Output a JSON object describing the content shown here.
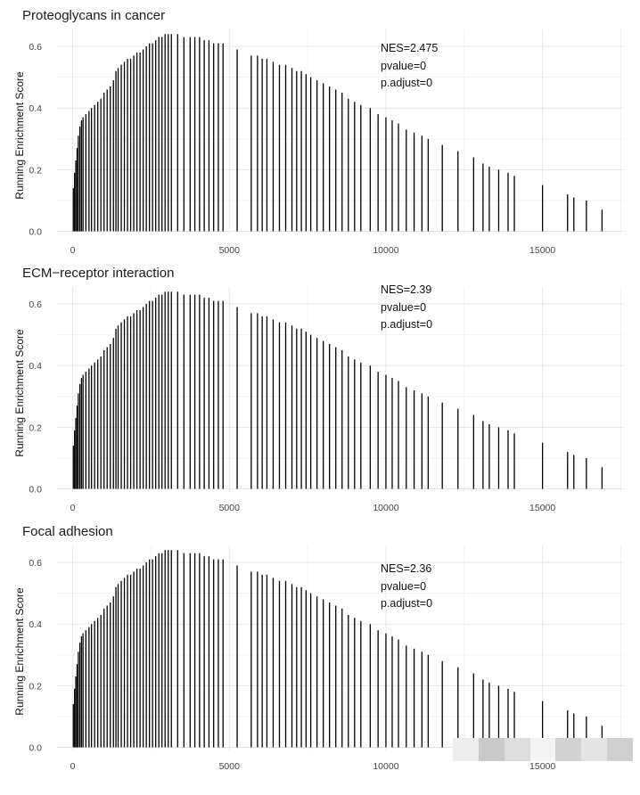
{
  "colors": {
    "bars": "#000000",
    "grid": "#e6e6e6",
    "background": "#ffffff",
    "text": "#1a1a1a"
  },
  "chart_data": [
    {
      "type": "barcode",
      "title": "Proteoglycans in cancer",
      "xlabel": "",
      "ylabel": "Running Enrichment Score",
      "xlim": [
        -500,
        17600
      ],
      "ylim": [
        -0.01,
        0.655
      ],
      "xticks": [
        0,
        5000,
        10000,
        15000
      ],
      "yticks": [
        0.0,
        0.2,
        0.4,
        0.6
      ],
      "grid": true,
      "annotations": [
        "NES=2.475",
        "pvalue=0",
        "p.adjust=0"
      ],
      "hits": [
        [
          20,
          0.14
        ],
        [
          60,
          0.19
        ],
        [
          100,
          0.23
        ],
        [
          140,
          0.27
        ],
        [
          180,
          0.31
        ],
        [
          230,
          0.34
        ],
        [
          280,
          0.36
        ],
        [
          330,
          0.37
        ],
        [
          420,
          0.38
        ],
        [
          520,
          0.39
        ],
        [
          600,
          0.4
        ],
        [
          700,
          0.41
        ],
        [
          800,
          0.42
        ],
        [
          900,
          0.43
        ],
        [
          1000,
          0.45
        ],
        [
          1100,
          0.46
        ],
        [
          1200,
          0.47
        ],
        [
          1300,
          0.49
        ],
        [
          1380,
          0.52
        ],
        [
          1450,
          0.53
        ],
        [
          1550,
          0.54
        ],
        [
          1650,
          0.55
        ],
        [
          1750,
          0.56
        ],
        [
          1850,
          0.56
        ],
        [
          1950,
          0.57
        ],
        [
          2050,
          0.58
        ],
        [
          2150,
          0.58
        ],
        [
          2250,
          0.59
        ],
        [
          2350,
          0.6
        ],
        [
          2450,
          0.61
        ],
        [
          2550,
          0.61
        ],
        [
          2650,
          0.62
        ],
        [
          2750,
          0.63
        ],
        [
          2850,
          0.63
        ],
        [
          2950,
          0.64
        ],
        [
          3050,
          0.64
        ],
        [
          3150,
          0.64
        ],
        [
          3350,
          0.64
        ],
        [
          3550,
          0.63
        ],
        [
          3750,
          0.63
        ],
        [
          3900,
          0.63
        ],
        [
          4050,
          0.63
        ],
        [
          4200,
          0.62
        ],
        [
          4350,
          0.62
        ],
        [
          4500,
          0.61
        ],
        [
          4650,
          0.61
        ],
        [
          4800,
          0.61
        ],
        [
          5250,
          0.59
        ],
        [
          5700,
          0.57
        ],
        [
          5900,
          0.57
        ],
        [
          6050,
          0.56
        ],
        [
          6200,
          0.56
        ],
        [
          6400,
          0.55
        ],
        [
          6600,
          0.54
        ],
        [
          6800,
          0.54
        ],
        [
          7000,
          0.53
        ],
        [
          7150,
          0.52
        ],
        [
          7300,
          0.52
        ],
        [
          7450,
          0.51
        ],
        [
          7600,
          0.5
        ],
        [
          7800,
          0.49
        ],
        [
          8000,
          0.48
        ],
        [
          8200,
          0.47
        ],
        [
          8400,
          0.46
        ],
        [
          8600,
          0.45
        ],
        [
          8800,
          0.43
        ],
        [
          9000,
          0.42
        ],
        [
          9200,
          0.41
        ],
        [
          9500,
          0.4
        ],
        [
          9750,
          0.38
        ],
        [
          10000,
          0.37
        ],
        [
          10200,
          0.36
        ],
        [
          10400,
          0.35
        ],
        [
          10650,
          0.33
        ],
        [
          10900,
          0.32
        ],
        [
          11150,
          0.31
        ],
        [
          11350,
          0.3
        ],
        [
          11800,
          0.28
        ],
        [
          12300,
          0.26
        ],
        [
          12800,
          0.24
        ],
        [
          13100,
          0.22
        ],
        [
          13300,
          0.21
        ],
        [
          13600,
          0.2
        ],
        [
          13900,
          0.19
        ],
        [
          14100,
          0.18
        ],
        [
          15000,
          0.15
        ],
        [
          15800,
          0.12
        ],
        [
          16000,
          0.11
        ],
        [
          16400,
          0.1
        ],
        [
          16900,
          0.07
        ]
      ]
    },
    {
      "type": "barcode",
      "title": "ECM−receptor interaction",
      "xlabel": "",
      "ylabel": "Running Enrichment Score",
      "xlim": [
        -500,
        17600
      ],
      "ylim": [
        -0.01,
        0.655
      ],
      "xticks": [
        0,
        5000,
        10000,
        15000
      ],
      "yticks": [
        0.0,
        0.2,
        0.4,
        0.6
      ],
      "grid": true,
      "annotations": [
        "NES=2.39",
        "pvalue=0",
        "p.adjust=0"
      ],
      "hits": [
        [
          20,
          0.14
        ],
        [
          60,
          0.19
        ],
        [
          100,
          0.23
        ],
        [
          140,
          0.27
        ],
        [
          180,
          0.31
        ],
        [
          230,
          0.34
        ],
        [
          280,
          0.36
        ],
        [
          330,
          0.37
        ],
        [
          420,
          0.38
        ],
        [
          520,
          0.39
        ],
        [
          600,
          0.4
        ],
        [
          700,
          0.41
        ],
        [
          800,
          0.42
        ],
        [
          900,
          0.43
        ],
        [
          1000,
          0.45
        ],
        [
          1100,
          0.46
        ],
        [
          1200,
          0.47
        ],
        [
          1300,
          0.49
        ],
        [
          1380,
          0.52
        ],
        [
          1450,
          0.53
        ],
        [
          1550,
          0.54
        ],
        [
          1650,
          0.55
        ],
        [
          1750,
          0.56
        ],
        [
          1850,
          0.56
        ],
        [
          1950,
          0.57
        ],
        [
          2050,
          0.58
        ],
        [
          2150,
          0.58
        ],
        [
          2250,
          0.59
        ],
        [
          2350,
          0.6
        ],
        [
          2450,
          0.61
        ],
        [
          2550,
          0.61
        ],
        [
          2650,
          0.62
        ],
        [
          2750,
          0.63
        ],
        [
          2850,
          0.63
        ],
        [
          2950,
          0.64
        ],
        [
          3050,
          0.64
        ],
        [
          3150,
          0.64
        ],
        [
          3350,
          0.64
        ],
        [
          3550,
          0.63
        ],
        [
          3750,
          0.63
        ],
        [
          3900,
          0.63
        ],
        [
          4050,
          0.63
        ],
        [
          4200,
          0.62
        ],
        [
          4350,
          0.62
        ],
        [
          4500,
          0.61
        ],
        [
          4650,
          0.61
        ],
        [
          4800,
          0.61
        ],
        [
          5250,
          0.59
        ],
        [
          5700,
          0.57
        ],
        [
          5900,
          0.57
        ],
        [
          6050,
          0.56
        ],
        [
          6200,
          0.56
        ],
        [
          6400,
          0.55
        ],
        [
          6600,
          0.54
        ],
        [
          6800,
          0.54
        ],
        [
          7000,
          0.53
        ],
        [
          7150,
          0.52
        ],
        [
          7300,
          0.52
        ],
        [
          7450,
          0.51
        ],
        [
          7600,
          0.5
        ],
        [
          7800,
          0.49
        ],
        [
          8000,
          0.48
        ],
        [
          8200,
          0.47
        ],
        [
          8400,
          0.46
        ],
        [
          8600,
          0.45
        ],
        [
          8800,
          0.43
        ],
        [
          9000,
          0.42
        ],
        [
          9200,
          0.41
        ],
        [
          9500,
          0.4
        ],
        [
          9750,
          0.38
        ],
        [
          10000,
          0.37
        ],
        [
          10200,
          0.36
        ],
        [
          10400,
          0.35
        ],
        [
          10650,
          0.33
        ],
        [
          10900,
          0.32
        ],
        [
          11150,
          0.31
        ],
        [
          11350,
          0.3
        ],
        [
          11800,
          0.28
        ],
        [
          12300,
          0.26
        ],
        [
          12800,
          0.24
        ],
        [
          13100,
          0.22
        ],
        [
          13300,
          0.21
        ],
        [
          13600,
          0.2
        ],
        [
          13900,
          0.19
        ],
        [
          14100,
          0.18
        ],
        [
          15000,
          0.15
        ],
        [
          15800,
          0.12
        ],
        [
          16000,
          0.11
        ],
        [
          16400,
          0.1
        ],
        [
          16900,
          0.07
        ]
      ]
    },
    {
      "type": "barcode",
      "title": "Focal adhesion",
      "xlabel": "",
      "ylabel": "Running Enrichment Score",
      "xlim": [
        -500,
        17600
      ],
      "ylim": [
        -0.01,
        0.655
      ],
      "xticks": [
        0,
        5000,
        10000,
        15000
      ],
      "yticks": [
        0.0,
        0.2,
        0.4,
        0.6
      ],
      "grid": true,
      "annotations": [
        "NES=2.36",
        "pvalue=0",
        "p.adjust=0"
      ],
      "hits": [
        [
          20,
          0.14
        ],
        [
          60,
          0.19
        ],
        [
          100,
          0.23
        ],
        [
          140,
          0.27
        ],
        [
          180,
          0.31
        ],
        [
          230,
          0.34
        ],
        [
          280,
          0.36
        ],
        [
          330,
          0.37
        ],
        [
          420,
          0.38
        ],
        [
          520,
          0.39
        ],
        [
          600,
          0.4
        ],
        [
          700,
          0.41
        ],
        [
          800,
          0.42
        ],
        [
          900,
          0.43
        ],
        [
          1000,
          0.45
        ],
        [
          1100,
          0.46
        ],
        [
          1200,
          0.47
        ],
        [
          1300,
          0.49
        ],
        [
          1380,
          0.52
        ],
        [
          1450,
          0.53
        ],
        [
          1550,
          0.54
        ],
        [
          1650,
          0.55
        ],
        [
          1750,
          0.56
        ],
        [
          1850,
          0.56
        ],
        [
          1950,
          0.57
        ],
        [
          2050,
          0.58
        ],
        [
          2150,
          0.58
        ],
        [
          2250,
          0.59
        ],
        [
          2350,
          0.6
        ],
        [
          2450,
          0.61
        ],
        [
          2550,
          0.61
        ],
        [
          2650,
          0.62
        ],
        [
          2750,
          0.63
        ],
        [
          2850,
          0.63
        ],
        [
          2950,
          0.64
        ],
        [
          3050,
          0.64
        ],
        [
          3150,
          0.64
        ],
        [
          3350,
          0.64
        ],
        [
          3550,
          0.63
        ],
        [
          3750,
          0.63
        ],
        [
          3900,
          0.63
        ],
        [
          4050,
          0.63
        ],
        [
          4200,
          0.62
        ],
        [
          4350,
          0.62
        ],
        [
          4500,
          0.61
        ],
        [
          4650,
          0.61
        ],
        [
          4800,
          0.61
        ],
        [
          5250,
          0.59
        ],
        [
          5700,
          0.57
        ],
        [
          5900,
          0.57
        ],
        [
          6050,
          0.56
        ],
        [
          6200,
          0.56
        ],
        [
          6400,
          0.55
        ],
        [
          6600,
          0.54
        ],
        [
          6800,
          0.54
        ],
        [
          7000,
          0.53
        ],
        [
          7150,
          0.52
        ],
        [
          7300,
          0.52
        ],
        [
          7450,
          0.51
        ],
        [
          7600,
          0.5
        ],
        [
          7800,
          0.49
        ],
        [
          8000,
          0.48
        ],
        [
          8200,
          0.47
        ],
        [
          8400,
          0.46
        ],
        [
          8600,
          0.45
        ],
        [
          8800,
          0.43
        ],
        [
          9000,
          0.42
        ],
        [
          9200,
          0.41
        ],
        [
          9500,
          0.4
        ],
        [
          9750,
          0.38
        ],
        [
          10000,
          0.37
        ],
        [
          10200,
          0.36
        ],
        [
          10400,
          0.35
        ],
        [
          10650,
          0.33
        ],
        [
          10900,
          0.32
        ],
        [
          11150,
          0.31
        ],
        [
          11350,
          0.3
        ],
        [
          11800,
          0.28
        ],
        [
          12300,
          0.26
        ],
        [
          12800,
          0.24
        ],
        [
          13100,
          0.22
        ],
        [
          13300,
          0.21
        ],
        [
          13600,
          0.2
        ],
        [
          13900,
          0.19
        ],
        [
          14100,
          0.18
        ],
        [
          15000,
          0.15
        ],
        [
          15800,
          0.12
        ],
        [
          16000,
          0.11
        ],
        [
          16400,
          0.1
        ],
        [
          16900,
          0.07
        ]
      ]
    }
  ]
}
